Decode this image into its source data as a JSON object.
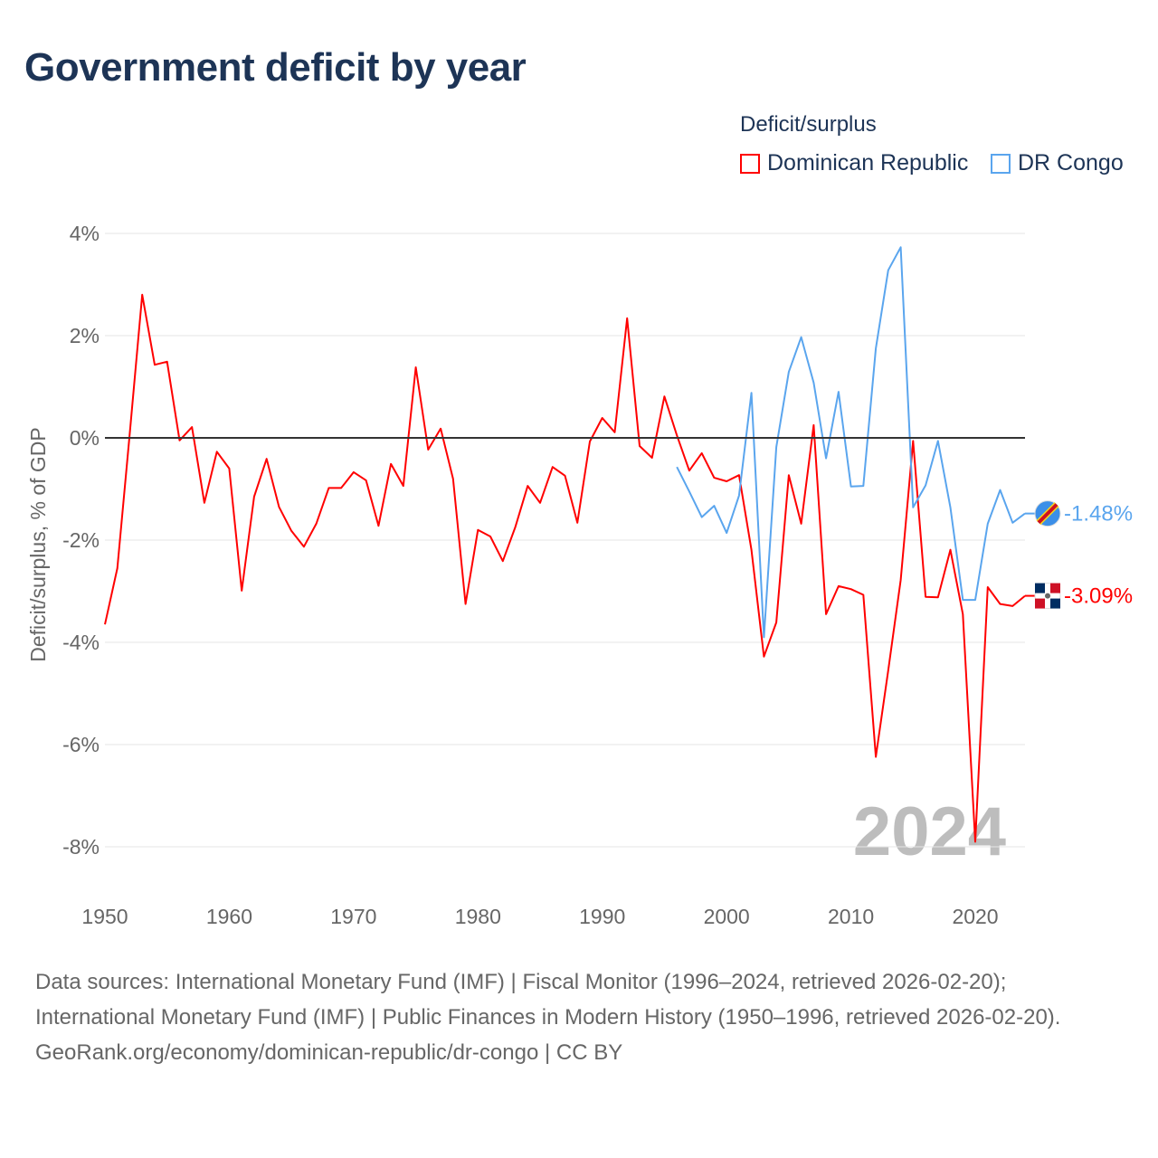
{
  "chart_data": {
    "type": "line",
    "title": "Government deficit by year",
    "ylabel": "Deficit/surplus, % of GDP",
    "xlabel": "",
    "ylim": [
      -8,
      4
    ],
    "xlim": [
      1950,
      2024
    ],
    "yticks": [
      4,
      2,
      0,
      -2,
      -4,
      -6,
      -8
    ],
    "ytick_labels": [
      "4%",
      "2%",
      "0%",
      "-2%",
      "-4%",
      "-6%",
      "-8%"
    ],
    "xticks": [
      1950,
      1960,
      1970,
      1980,
      1990,
      2000,
      2010,
      2020
    ],
    "xtick_labels": [
      "1950",
      "1960",
      "1970",
      "1980",
      "1990",
      "2000",
      "2010",
      "2020"
    ],
    "grid": "horizontal",
    "legend_title": "Deficit/surplus",
    "legend_position": "top-right",
    "year_watermark": "2024",
    "series": [
      {
        "name": "Dominican Republic",
        "color": "#ff0000",
        "end_label": "-3.09%",
        "x_start": 1950,
        "values": [
          -3.65,
          -2.55,
          0.1,
          2.8,
          1.43,
          1.49,
          -0.05,
          0.21,
          -1.27,
          -0.27,
          -0.6,
          -2.99,
          -1.15,
          -0.41,
          -1.35,
          -1.82,
          -2.13,
          -1.68,
          -0.98,
          -0.98,
          -0.67,
          -0.83,
          -1.72,
          -0.51,
          -0.94,
          1.38,
          -0.23,
          0.18,
          -0.8,
          -3.25,
          -1.8,
          -1.93,
          -2.41,
          -1.75,
          -0.94,
          -1.27,
          -0.57,
          -0.74,
          -1.66,
          -0.07,
          0.39,
          0.11,
          2.34,
          -0.16,
          -0.39,
          0.81,
          0.05,
          -0.64,
          -0.3,
          -0.78,
          -0.85,
          -0.73,
          -2.19,
          -4.28,
          -3.61,
          -0.73,
          -1.68,
          0.25,
          -3.45,
          -2.9,
          -2.96,
          -3.07,
          -6.24,
          -4.55,
          -2.78,
          -0.06,
          -3.11,
          -3.12,
          -2.19,
          -3.45,
          -7.9,
          -2.92,
          -3.25,
          -3.29,
          -3.09
        ]
      },
      {
        "name": "DR Congo",
        "color": "#5aa5ee",
        "end_label": "-1.48%",
        "x_start": 1996,
        "values": [
          -0.57,
          -1.05,
          -1.55,
          -1.33,
          -1.86,
          -1.13,
          0.88,
          -3.9,
          -0.18,
          1.29,
          1.97,
          1.08,
          -0.4,
          0.9,
          -0.95,
          -0.94,
          1.75,
          3.28,
          3.73,
          -1.36,
          -0.93,
          -0.06,
          -1.36,
          -3.17,
          -3.17,
          -1.68,
          -1.02,
          -1.66,
          -1.48
        ]
      }
    ]
  },
  "footer": {
    "sources": "Data sources: International Monetary Fund (IMF) | Fiscal Monitor (1996–2024, retrieved 2026-02-20); International Monetary Fund (IMF) | Public Finances in Modern History (1950–1996, retrieved 2026-02-20).",
    "link": "GeoRank.org/economy/dominican-republic/dr-congo | CC BY"
  }
}
